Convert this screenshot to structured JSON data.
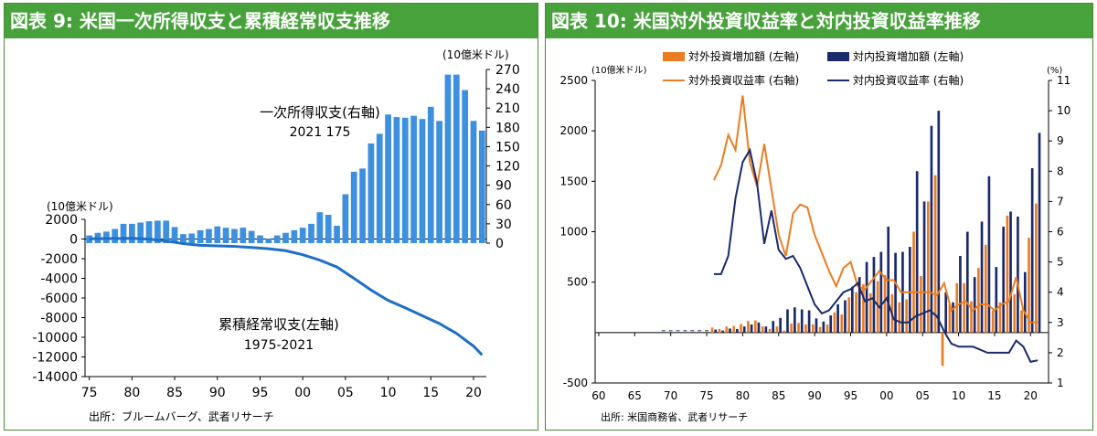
{
  "panels": {
    "left": {
      "title": "図表 9: 米国一次所得収支と累積経常収支推移",
      "source": "出所：ブルームバーグ、武者リサーチ"
    },
    "right": {
      "title": "図表 10: 米国対外投資収益率と対内投資収益率推移",
      "source": "出所: 米国商務省、武者リサーチ"
    }
  },
  "colors": {
    "header": "#48a23c",
    "left_bar": "#3d8fe0",
    "left_line": "#1f6fc4",
    "outward": "#ea7d22",
    "inward": "#1a2a6c"
  },
  "chart_data": [
    {
      "id": "left",
      "type": "bar+line",
      "title": "図表 9: 米国一次所得収支と累積経常収支推移",
      "x_ticks": [
        "75",
        "80",
        "85",
        "90",
        "95",
        "00",
        "05",
        "10",
        "15",
        "20"
      ],
      "y_left": {
        "unit_label": "(10億米ドル)",
        "range": [
          -14000,
          2000
        ],
        "ticks": [
          "2000",
          "0",
          "-2000",
          "-4000",
          "-6000",
          "-8000",
          "-10000",
          "-12000",
          "-14000"
        ]
      },
      "y_right": {
        "unit_label": "(10億米ドル)",
        "range": [
          0,
          270
        ],
        "ticks": [
          "270",
          "240",
          "210",
          "180",
          "150",
          "120",
          "90",
          "60",
          "30",
          "0"
        ]
      },
      "series": [
        {
          "name": "一次所得収支(右軸)",
          "axis": "right",
          "type": "bar",
          "years": [
            1975,
            1976,
            1977,
            1978,
            1979,
            1980,
            1981,
            1982,
            1983,
            1984,
            1985,
            1986,
            1987,
            1988,
            1989,
            1990,
            1991,
            1992,
            1993,
            1994,
            1995,
            1996,
            1997,
            1998,
            1999,
            2000,
            2001,
            2002,
            2003,
            2004,
            2005,
            2006,
            2007,
            2008,
            2009,
            2010,
            2011,
            2012,
            2013,
            2014,
            2015,
            2016,
            2017,
            2018,
            2019,
            2020,
            2021
          ],
          "values": [
            12,
            16,
            18,
            22,
            30,
            30,
            32,
            34,
            35,
            35,
            25,
            14,
            15,
            20,
            22,
            26,
            24,
            22,
            24,
            19,
            12,
            7,
            12,
            16,
            20,
            24,
            30,
            48,
            44,
            27,
            76,
            111,
            116,
            155,
            170,
            200,
            196,
            195,
            198,
            193,
            212,
            190,
            262,
            262,
            238,
            190,
            175
          ]
        },
        {
          "name": "累積経常収支(左軸)",
          "axis": "left",
          "type": "line",
          "years": [
            1975,
            1980,
            1982,
            1984,
            1986,
            1988,
            1990,
            1992,
            1994,
            1996,
            1998,
            2000,
            2002,
            2004,
            2006,
            2008,
            2010,
            2012,
            2014,
            2016,
            2018,
            2020,
            2021
          ],
          "values": [
            20,
            70,
            -10,
            -200,
            -470,
            -640,
            -700,
            -750,
            -860,
            -990,
            -1190,
            -1600,
            -2150,
            -2850,
            -4000,
            -5200,
            -6250,
            -7000,
            -7800,
            -8600,
            -9600,
            -10900,
            -11800
          ]
        }
      ],
      "annotations": [
        {
          "text": "一次所得収支(右軸)"
        },
        {
          "text": "2021 175"
        },
        {
          "text": "累積経常収支(左軸)"
        },
        {
          "text": "1975-2021"
        }
      ]
    },
    {
      "id": "right",
      "type": "bar+line",
      "title": "図表 10: 米国対外投資収益率と対内投資収益率推移",
      "x_ticks": [
        "60",
        "65",
        "70",
        "75",
        "80",
        "85",
        "90",
        "95",
        "00",
        "05",
        "10",
        "15",
        "20"
      ],
      "y_left": {
        "unit_label": "(10億米ドル)",
        "range": [
          -500,
          2500
        ],
        "ticks": [
          "2500",
          "2000",
          "1500",
          "1000",
          "500",
          "-500"
        ]
      },
      "y_right": {
        "unit_label": "(%)",
        "range": [
          1,
          11
        ],
        "ticks": [
          "11",
          "10",
          "9",
          "8",
          "7",
          "6",
          "5",
          "4",
          "3",
          "2",
          "1"
        ]
      },
      "legend": [
        "対外投資増加額 (左軸)",
        "対内投資増加額 (左軸)",
        "対外投資収益率 (右軸)",
        "対内投資収益率 (右軸)"
      ],
      "years": [
        1976,
        1977,
        1978,
        1979,
        1980,
        1981,
        1982,
        1983,
        1984,
        1985,
        1986,
        1987,
        1988,
        1989,
        1990,
        1991,
        1992,
        1993,
        1994,
        1995,
        1996,
        1997,
        1998,
        1999,
        2000,
        2001,
        2002,
        2003,
        2004,
        2005,
        2006,
        2007,
        2008,
        2009,
        2010,
        2011,
        2012,
        2013,
        2014,
        2015,
        2016,
        2017,
        2018,
        2019,
        2020,
        2021
      ],
      "series": [
        {
          "name": "対外投資増加額 (左軸)",
          "axis": "left",
          "type": "bar",
          "values": [
            50,
            35,
            60,
            65,
            85,
            115,
            120,
            60,
            35,
            60,
            20,
            90,
            95,
            80,
            80,
            55,
            80,
            200,
            180,
            350,
            400,
            480,
            390,
            510,
            570,
            380,
            300,
            330,
            1000,
            560,
            1300,
            1560,
            -330,
            280,
            490,
            490,
            310,
            640,
            870,
            220,
            300,
            1160,
            380,
            220,
            940,
            1280
          ]
        },
        {
          "name": "対内投資増加額 (左軸)",
          "axis": "left",
          "type": "bar",
          "values": [
            30,
            20,
            40,
            35,
            60,
            80,
            100,
            60,
            115,
            145,
            230,
            250,
            230,
            220,
            140,
            110,
            170,
            280,
            320,
            450,
            550,
            700,
            750,
            800,
            1050,
            790,
            800,
            850,
            1600,
            1300,
            2050,
            2200,
            400,
            300,
            760,
            1000,
            550,
            1100,
            1550,
            650,
            1050,
            1200,
            1150,
            600,
            1630,
            1980
          ]
        },
        {
          "name": "対外投資収益率 (右軸)",
          "axis": "right",
          "type": "line",
          "values": [
            7.7,
            8.2,
            9.2,
            8.7,
            10.5,
            8.3,
            7.5,
            8.9,
            7.4,
            5.9,
            5.2,
            6.6,
            6.9,
            6.8,
            5.9,
            5.3,
            4.7,
            4.2,
            4.8,
            5.0,
            4.2,
            4.1,
            4.4,
            4.7,
            4.4,
            4.4,
            4.0,
            4.0,
            4.0,
            4.0,
            4.0,
            3.9,
            4.3,
            3.4,
            3.6,
            3.7,
            3.4,
            3.6,
            3.6,
            3.4,
            3.6,
            3.7,
            4.5,
            3.4,
            3.0,
            3.0
          ]
        },
        {
          "name": "対内投資収益率 (右軸)",
          "axis": "right",
          "type": "line",
          "values": [
            4.6,
            4.6,
            5.2,
            7.1,
            8.3,
            8.7,
            7.6,
            5.6,
            6.7,
            5.4,
            5.1,
            5.2,
            4.8,
            4.2,
            3.6,
            3.3,
            3.4,
            3.7,
            4.0,
            4.1,
            4.3,
            3.7,
            3.8,
            3.5,
            3.8,
            3.1,
            3.0,
            3.0,
            3.2,
            3.3,
            3.4,
            3.2,
            2.7,
            2.3,
            2.2,
            2.2,
            2.2,
            2.1,
            2.0,
            2.0,
            2.0,
            2.0,
            2.4,
            2.2,
            1.7,
            1.75
          ]
        }
      ]
    }
  ]
}
